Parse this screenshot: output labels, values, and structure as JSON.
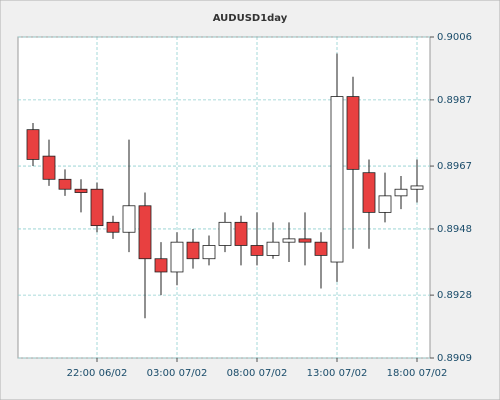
{
  "chart_data": {
    "type": "candlestick",
    "title": "AUDUSD1day",
    "categories": [
      null,
      null,
      null,
      null,
      "22:00 06/02",
      null,
      null,
      null,
      null,
      "03:00 07/02",
      null,
      null,
      null,
      null,
      "08:00 07/02",
      null,
      null,
      null,
      null,
      "13:00 07/02",
      null,
      null,
      null,
      null,
      "18:00 07/02"
    ],
    "open": [
      0.8978,
      0.897,
      0.8963,
      0.896,
      0.896,
      0.895,
      0.8947,
      0.8955,
      0.8939,
      0.8935,
      0.8944,
      0.8939,
      0.8943,
      0.895,
      0.8943,
      0.894,
      0.8944,
      0.8945,
      0.8944,
      0.8938,
      0.8988,
      0.8965,
      0.8953,
      0.8958,
      0.896
    ],
    "high": [
      0.898,
      0.8975,
      0.8966,
      0.8963,
      0.8962,
      0.8952,
      0.8975,
      0.8959,
      0.8944,
      0.8947,
      0.8948,
      0.8946,
      0.8953,
      0.8952,
      0.8953,
      0.895,
      0.895,
      0.8953,
      0.8947,
      0.9001,
      0.8994,
      0.8969,
      0.8965,
      0.8964,
      0.8969
    ],
    "low": [
      0.8967,
      0.8961,
      0.8958,
      0.8953,
      0.8947,
      0.8945,
      0.8941,
      0.8921,
      0.8928,
      0.8931,
      0.8936,
      0.8937,
      0.8941,
      0.8937,
      0.8937,
      0.8939,
      0.8938,
      0.8937,
      0.893,
      0.8932,
      0.8942,
      0.8942,
      0.895,
      0.8954,
      0.8956
    ],
    "close": [
      0.8969,
      0.8963,
      0.896,
      0.8959,
      0.8949,
      0.8947,
      0.8955,
      0.8939,
      0.8935,
      0.8944,
      0.8939,
      0.8943,
      0.895,
      0.8943,
      0.894,
      0.8944,
      0.8945,
      0.8944,
      0.894,
      0.8988,
      0.8966,
      0.8953,
      0.8958,
      0.896,
      0.8961
    ],
    "up_color": "#ffffff",
    "down_color": "#e84040",
    "ylim": [
      0.8909,
      0.9006
    ],
    "yticks": [
      0.9006,
      0.8987,
      0.8967,
      0.8948,
      0.8928,
      0.8909
    ],
    "grid": true
  }
}
